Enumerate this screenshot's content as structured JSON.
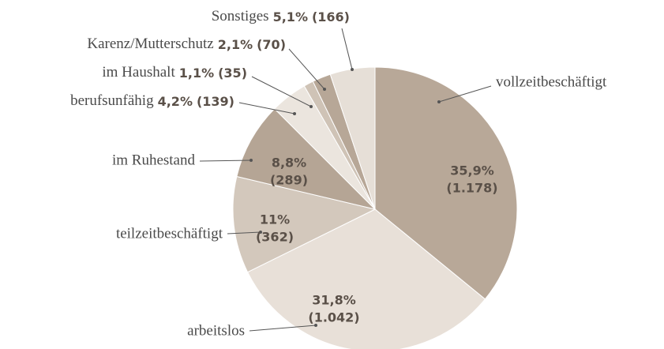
{
  "chart_data": {
    "type": "pie",
    "categories": [
      "vollzeitbeschäftigt",
      "arbeitslos",
      "teilzeitbeschäftigt",
      "im Ruhestand",
      "berufsunfähig",
      "im Haushalt",
      "Karenz/Mutterschutz",
      "Sonstiges"
    ],
    "values": [
      35.9,
      31.8,
      11,
      8.8,
      4.2,
      1.1,
      2.1,
      5.1
    ],
    "value_labels": [
      "35,9%",
      "31,8%",
      "11%",
      "8,8%",
      "4,2%",
      "1,1%",
      "2,1%",
      "5,1%"
    ],
    "counts": [
      1178,
      1042,
      362,
      289,
      139,
      35,
      70,
      166
    ],
    "count_labels": [
      "(1.178)",
      "(1.042)",
      "(362)",
      "(289)",
      "(139)",
      "(35)",
      "(70)",
      "(166)"
    ],
    "colors": [
      "#b8a898",
      "#e8e0d8",
      "#d3c8bc",
      "#b5a595",
      "#ebe5de",
      "#cfc3b6",
      "#b7a797",
      "#e6dfd7"
    ]
  }
}
